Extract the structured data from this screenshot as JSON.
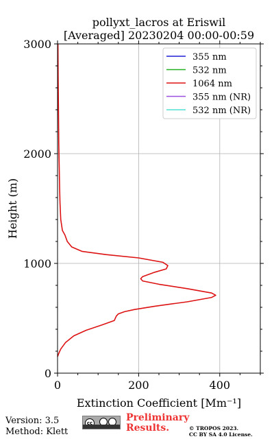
{
  "chart_data": {
    "type": "line",
    "title_line1": "pollyxt_lacros at Eriswil",
    "title_line2": "[Averaged] 20230204 00:00-00:59",
    "xlabel": "Extinction Coefficient [Mm⁻¹]",
    "ylabel": "Height (m)",
    "xlim": [
      0,
      500
    ],
    "ylim": [
      0,
      3000
    ],
    "xticks": [
      "0",
      "200",
      "400"
    ],
    "yticks": [
      "0",
      "1000",
      "2000",
      "3000"
    ],
    "grid": true,
    "legend_position": "top-right",
    "series": [
      {
        "name": "355 nm",
        "color": "#1f1fd6",
        "x": [],
        "y": []
      },
      {
        "name": "532 nm",
        "color": "#22b022",
        "x": [],
        "y": []
      },
      {
        "name": "1064 nm",
        "color": "#dd1111",
        "x": [
          0,
          3,
          8,
          20,
          40,
          70,
          110,
          140,
          145,
          150,
          165,
          190,
          240,
          320,
          380,
          390,
          380,
          320,
          250,
          210,
          205,
          210,
          240,
          268,
          272,
          260,
          200,
          120,
          60,
          35,
          24,
          18,
          12,
          8,
          6,
          5,
          4,
          3,
          2.5,
          2,
          1.5,
          1
        ],
        "y": [
          150,
          180,
          220,
          280,
          340,
          390,
          440,
          480,
          520,
          540,
          560,
          580,
          610,
          650,
          690,
          710,
          730,
          770,
          810,
          840,
          860,
          880,
          920,
          950,
          980,
          1010,
          1050,
          1080,
          1110,
          1150,
          1200,
          1260,
          1300,
          1400,
          1550,
          1700,
          1900,
          2100,
          2300,
          2500,
          2700,
          3000
        ]
      },
      {
        "name": "355 nm (NR)",
        "color": "#9b4fe0",
        "x": [],
        "y": []
      },
      {
        "name": "532 nm (NR)",
        "color": "#4fe0d0",
        "x": [],
        "y": []
      }
    ]
  },
  "footer": {
    "version": "Version: 3.5",
    "method": "Method: Klett",
    "preliminary_line1": "Preliminary",
    "preliminary_line2": "Results.",
    "copyright_line1": "© TROPOS 2023.",
    "copyright_line2": "CC BY SA 4.0 License.",
    "license_badge": "cc-by-sa-badge"
  }
}
